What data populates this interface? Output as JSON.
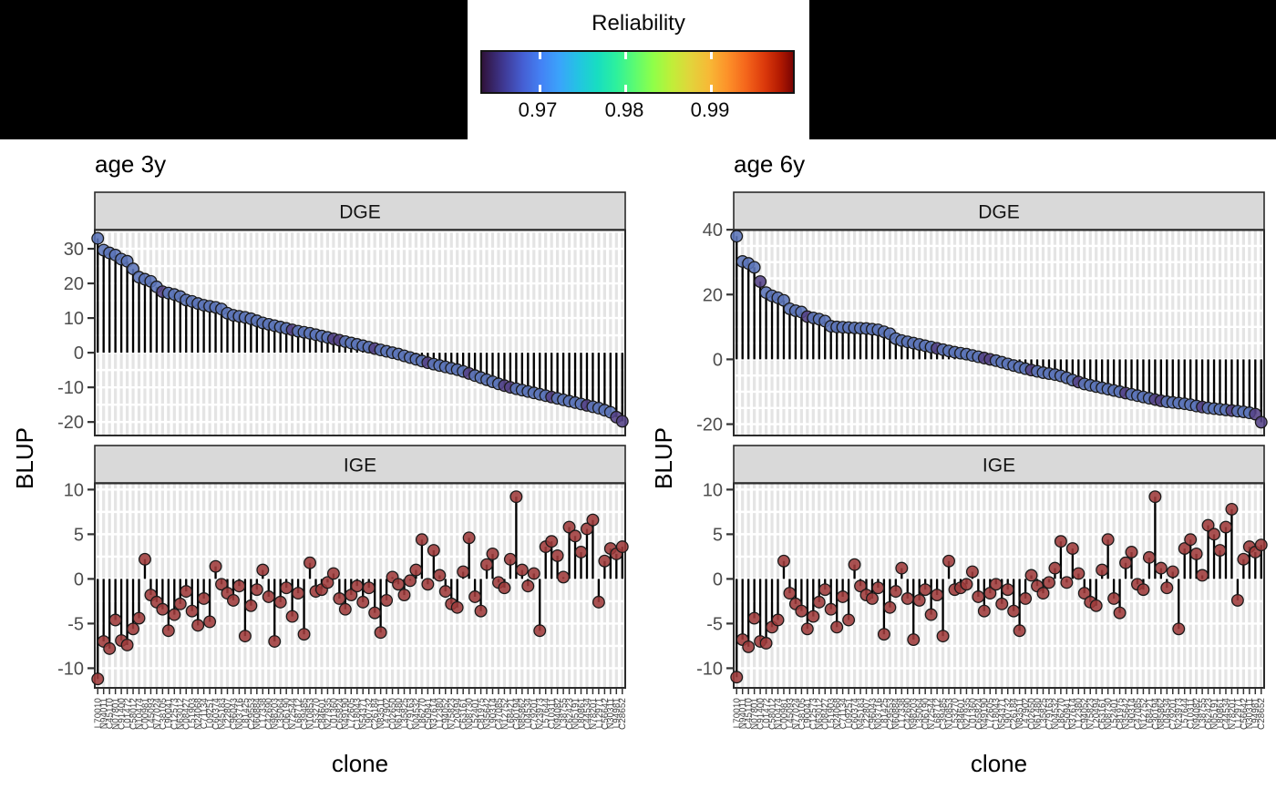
{
  "chart_data": {
    "type": "lollipop",
    "title": "",
    "legend": {
      "title": "Reliability",
      "tick_labels": [
        "0.97",
        "0.98",
        "0.99"
      ],
      "range": [
        0.963,
        1.0
      ],
      "colormap": "turbo",
      "position": "top"
    },
    "x_categories": [
      "L70010",
      "N94011",
      "C45110",
      "N07801",
      "C91400",
      "L01472",
      "C58012",
      "N10474",
      "C00981",
      "L45093",
      "N77024",
      "C38105",
      "L90041",
      "C12573",
      "N63012",
      "C08427",
      "L51903",
      "N24068",
      "C71134",
      "L09251",
      "C60374",
      "N45183",
      "L22807",
      "C96043",
      "N03716",
      "L81425",
      "C29553",
      "N60884",
      "L17338",
      "C42690",
      "N98203",
      "L35064",
      "C06190",
      "N72544",
      "L68712",
      "C39485",
      "N10853",
      "L53270",
      "C84601",
      "N27935",
      "L01360",
      "C65824",
      "N49190",
      "L72605",
      "C18043",
      "N54371",
      "L90732",
      "C26184",
      "N83511",
      "L47902",
      "C02650",
      "N61480",
      "L35825",
      "C79163",
      "N04532",
      "L86270",
      "C50941",
      "N37614",
      "L12380",
      "C94052",
      "N75823",
      "L20494",
      "C63161",
      "N08730",
      "L52401",
      "C81975",
      "N35642",
      "L90314",
      "C47085",
      "N12752",
      "L68421",
      "C30194",
      "N85862",
      "L04534",
      "C79201",
      "N23973",
      "L57644",
      "C10311",
      "N94082",
      "L38755",
      "C62423",
      "N05191",
      "L80861",
      "C44534",
      "N78201",
      "L12971",
      "C56642",
      "N30311",
      "L94981",
      "C28652"
    ],
    "plots": [
      {
        "title": "age 3y",
        "ylabel": "BLUP",
        "xlabel": "clone",
        "facets": [
          {
            "label": "DGE",
            "y_ticks": [
              30,
              20,
              10,
              0,
              -10,
              -20
            ],
            "y_domain": [
              35.4,
              -23.9
            ],
            "grid_step": 5,
            "point_color": "#5b74b8",
            "alt_point_color": "#544286",
            "alt_indices": [
              11,
              33,
              40,
              41,
              47,
              56,
              63,
              69,
              70,
              77,
              83,
              88,
              89
            ],
            "values": [
              33.0,
              29.6,
              28.8,
              28.2,
              27.0,
              26.4,
              24.2,
              21.8,
              21.2,
              20.6,
              19.0,
              17.6,
              17.2,
              16.8,
              16.2,
              15.2,
              14.8,
              14.2,
              13.7,
              13.4,
              13.1,
              12.6,
              11.4,
              10.8,
              10.5,
              10.2,
              9.8,
              9.2,
              8.6,
              8.2,
              7.8,
              7.4,
              7.0,
              6.6,
              6.2,
              5.9,
              5.6,
              5.2,
              4.8,
              4.4,
              4.0,
              3.6,
              3.2,
              2.8,
              2.4,
              2.0,
              1.6,
              1.2,
              0.8,
              0.4,
              0.0,
              -0.4,
              -0.9,
              -1.4,
              -1.9,
              -2.4,
              -2.9,
              -3.3,
              -3.7,
              -4.1,
              -4.5,
              -4.9,
              -5.4,
              -6.0,
              -6.6,
              -7.2,
              -7.8,
              -8.4,
              -9.0,
              -9.5,
              -10.0,
              -10.4,
              -10.8,
              -11.2,
              -11.6,
              -12.0,
              -12.4,
              -12.8,
              -13.2,
              -13.6,
              -14.0,
              -14.4,
              -14.8,
              -15.2,
              -15.6,
              -16.0,
              -16.6,
              -17.2,
              -18.6,
              -19.8
            ]
          },
          {
            "label": "IGE",
            "y_ticks": [
              10,
              5,
              0,
              -5,
              -10
            ],
            "y_domain": [
              10.7,
              -12.2
            ],
            "grid_step": 2.5,
            "point_color": "#9e3a3a",
            "alt_point_color": "#8a2f2f",
            "alt_indices": [],
            "values": [
              -11.2,
              -7.0,
              -7.8,
              -4.6,
              -6.9,
              -7.4,
              -5.6,
              -4.4,
              2.2,
              -1.8,
              -2.6,
              -3.4,
              -5.8,
              -4.0,
              -2.8,
              -1.4,
              -3.6,
              -5.2,
              -2.2,
              -4.8,
              1.4,
              -0.6,
              -1.6,
              -2.4,
              -0.8,
              -6.4,
              -3.0,
              -1.2,
              1.0,
              -2.0,
              -7.0,
              -2.6,
              -1.0,
              -4.2,
              -1.6,
              -6.2,
              1.8,
              -1.4,
              -1.2,
              -0.4,
              0.6,
              -2.2,
              -3.4,
              -1.8,
              -0.8,
              -2.6,
              -1.0,
              -3.8,
              -6.0,
              -2.4,
              0.2,
              -0.6,
              -1.8,
              -0.2,
              1.0,
              4.4,
              -0.6,
              3.2,
              0.4,
              -1.4,
              -2.8,
              -3.2,
              0.8,
              4.6,
              -2.0,
              -3.6,
              1.6,
              2.8,
              -0.4,
              -1.0,
              2.2,
              9.2,
              1.0,
              -0.8,
              0.6,
              -5.8,
              3.6,
              4.2,
              2.6,
              0.2,
              5.8,
              4.8,
              3.0,
              5.6,
              6.6,
              -2.6,
              2.0,
              3.4,
              2.8,
              3.6
            ]
          }
        ]
      },
      {
        "title": "age 6y",
        "ylabel": "BLUP",
        "xlabel": "clone",
        "facets": [
          {
            "label": "DGE",
            "y_ticks": [
              40,
              20,
              0,
              -20
            ],
            "y_domain": [
              39.9,
              -23.5
            ],
            "grid_step": 5,
            "point_color": "#5b74b8",
            "alt_point_color": "#544286",
            "alt_indices": [
              4,
              12,
              34,
              42,
              43,
              50,
              58,
              66,
              71,
              72,
              79,
              84,
              88,
              89
            ],
            "values": [
              38.0,
              30.2,
              29.6,
              28.4,
              24.0,
              20.6,
              19.6,
              19.0,
              18.2,
              15.6,
              15.0,
              14.6,
              13.2,
              12.8,
              12.4,
              11.8,
              10.2,
              10.0,
              9.9,
              9.8,
              9.7,
              9.6,
              9.5,
              9.3,
              9.1,
              8.5,
              7.9,
              6.4,
              5.8,
              5.4,
              5.0,
              4.6,
              4.2,
              3.8,
              3.4,
              3.0,
              2.6,
              2.2,
              1.9,
              1.6,
              1.2,
              0.8,
              0.4,
              0.0,
              -0.4,
              -0.9,
              -1.4,
              -1.9,
              -2.4,
              -2.9,
              -3.3,
              -3.7,
              -4.1,
              -4.4,
              -4.7,
              -5.1,
              -5.7,
              -6.4,
              -7.0,
              -7.6,
              -8.0,
              -8.4,
              -8.8,
              -9.2,
              -9.6,
              -10.0,
              -10.4,
              -10.8,
              -11.2,
              -11.6,
              -12.0,
              -12.4,
              -12.8,
              -13.1,
              -13.3,
              -13.5,
              -13.7,
              -14.0,
              -14.4,
              -14.7,
              -15.0,
              -15.2,
              -15.4,
              -15.6,
              -15.8,
              -16.0,
              -16.2,
              -16.5,
              -16.9,
              -19.4
            ]
          },
          {
            "label": "IGE",
            "y_ticks": [
              10,
              5,
              0,
              -5,
              -10
            ],
            "y_domain": [
              10.7,
              -12.2
            ],
            "grid_step": 2.5,
            "point_color": "#9e3a3a",
            "alt_point_color": "#8a2f2f",
            "alt_indices": [],
            "values": [
              -11.0,
              -6.8,
              -7.6,
              -4.4,
              -7.0,
              -7.2,
              -5.4,
              -4.6,
              2.0,
              -1.6,
              -2.8,
              -3.6,
              -5.6,
              -4.2,
              -2.6,
              -1.2,
              -3.4,
              -5.4,
              -2.0,
              -4.6,
              1.6,
              -0.8,
              -1.8,
              -2.2,
              -1.0,
              -6.2,
              -3.2,
              -1.4,
              1.2,
              -2.2,
              -6.8,
              -2.4,
              -1.2,
              -4.0,
              -1.8,
              -6.4,
              2.0,
              -1.2,
              -1.0,
              -0.6,
              0.8,
              -2.0,
              -3.6,
              -1.6,
              -0.6,
              -2.8,
              -1.2,
              -3.6,
              -5.8,
              -2.2,
              0.4,
              -0.8,
              -1.6,
              -0.4,
              1.2,
              4.2,
              -0.4,
              3.4,
              0.6,
              -1.6,
              -2.6,
              -3.0,
              1.0,
              4.4,
              -2.2,
              -3.8,
              1.8,
              3.0,
              -0.6,
              -1.2,
              2.4,
              9.2,
              1.2,
              -1.0,
              0.8,
              -5.6,
              3.4,
              4.4,
              2.8,
              0.4,
              6.0,
              5.0,
              3.2,
              5.8,
              7.8,
              -2.4,
              2.2,
              3.6,
              3.0,
              3.8
            ]
          }
        ]
      }
    ],
    "styles": {
      "stem_color": "#000000",
      "grid_vertical_color": "#e4e4e4",
      "grid_horizontal_color": "#ffffff",
      "panel_border_color": "#2b2b2b",
      "strip_background": "#d9d9d9",
      "strip_text_color": "#141414",
      "axis_text_color": "#4d4d4d",
      "axis_tick_color": "#333333",
      "title_color": "#000000",
      "point_stroke_color": "#1a1a1a",
      "banner_color": "#000000"
    }
  }
}
